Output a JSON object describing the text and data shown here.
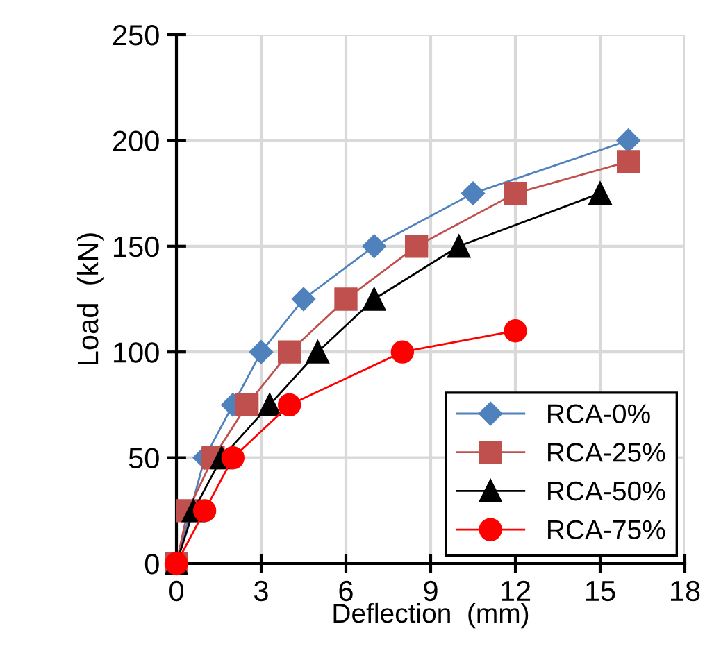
{
  "chart_data": {
    "type": "line",
    "xlabel": "Deflection  (mm)",
    "ylabel": "Load  (kN)",
    "xlim": [
      0,
      18
    ],
    "xticks": [
      0,
      3,
      6,
      9,
      12,
      15,
      18
    ],
    "ylim": [
      0,
      250
    ],
    "yticks": [
      0,
      50,
      100,
      150,
      200,
      250
    ],
    "grid": true,
    "legend": "bottom right",
    "line_style": "solid",
    "series": [
      {
        "name": "RCA-0%",
        "color": "#4f81bd",
        "marker": "diamond",
        "x": [
          0,
          1,
          2,
          3,
          4.5,
          7,
          10.5,
          16
        ],
        "values": [
          0,
          50,
          75,
          100,
          125,
          150,
          175,
          200
        ]
      },
      {
        "name": "RCA-25%",
        "color": "#c0504d",
        "marker": "square",
        "x": [
          0,
          0.4,
          1.3,
          2.5,
          4,
          6,
          8.5,
          12,
          16
        ],
        "values": [
          0,
          25,
          50,
          75,
          100,
          125,
          150,
          175,
          190
        ]
      },
      {
        "name": "RCA-50%",
        "color": "#000000",
        "marker": "triangle",
        "x": [
          0,
          0.6,
          1.6,
          3.3,
          5,
          7,
          10,
          15
        ],
        "values": [
          0,
          25,
          50,
          75,
          100,
          125,
          150,
          175
        ]
      },
      {
        "name": "RCA-75%",
        "color": "#ff0000",
        "marker": "circle",
        "x": [
          0,
          1,
          2,
          4,
          8,
          12
        ],
        "values": [
          0,
          25,
          50,
          75,
          100,
          110
        ]
      }
    ]
  }
}
